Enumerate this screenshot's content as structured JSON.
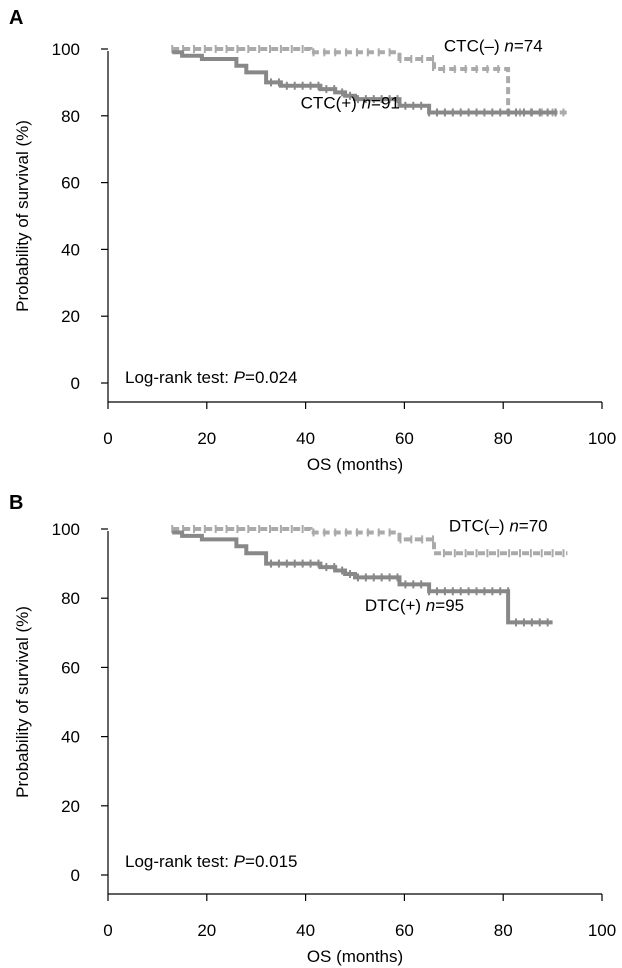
{
  "chart_data": [
    {
      "type": "line",
      "panel_label": "A",
      "xlabel": "OS (months)",
      "ylabel": "Probability of survival (%)",
      "xlim": [
        0,
        100
      ],
      "ylim": [
        0,
        100
      ],
      "x_ticks": [
        0,
        20,
        40,
        60,
        80,
        100
      ],
      "y_ticks": [
        0,
        20,
        40,
        60,
        80,
        100
      ],
      "annotation": {
        "prefix": "Log-rank test: ",
        "p_symbol": "P",
        "p_value": "=0.024"
      },
      "series": [
        {
          "name": "CTC(–)",
          "n_symbol": "n",
          "n_value": "=74",
          "color": "#aaaaaa",
          "dash": true,
          "points": [
            [
              13,
              100
            ],
            [
              41,
              100
            ],
            [
              41,
              99
            ],
            [
              59,
              99
            ],
            [
              59,
              97
            ],
            [
              66,
              97
            ],
            [
              66,
              94
            ],
            [
              81,
              94
            ],
            [
              81,
              81
            ],
            [
              93,
              81
            ]
          ],
          "censor_start": 13,
          "censor_end": 93
        },
        {
          "name": "CTC(+)",
          "n_symbol": "n",
          "n_value": "=91",
          "color": "#888888",
          "dash": false,
          "points": [
            [
              13,
              99
            ],
            [
              15,
              99
            ],
            [
              15,
              98
            ],
            [
              19,
              98
            ],
            [
              19,
              97
            ],
            [
              26,
              97
            ],
            [
              26,
              95
            ],
            [
              28,
              95
            ],
            [
              28,
              93
            ],
            [
              32,
              93
            ],
            [
              32,
              90
            ],
            [
              35,
              90
            ],
            [
              35,
              89
            ],
            [
              43,
              89
            ],
            [
              43,
              88
            ],
            [
              46,
              88
            ],
            [
              46,
              87
            ],
            [
              48,
              87
            ],
            [
              48,
              86
            ],
            [
              50,
              86
            ],
            [
              50,
              85
            ],
            [
              59,
              85
            ],
            [
              59,
              83
            ],
            [
              65,
              83
            ],
            [
              65,
              81
            ],
            [
              91,
              81
            ]
          ],
          "censor_start": 33,
          "censor_end": 91
        }
      ],
      "labels": [
        {
          "series": 0,
          "x": 68,
          "y": 101
        },
        {
          "series": 1,
          "x": 39,
          "y": 84
        }
      ]
    },
    {
      "type": "line",
      "panel_label": "B",
      "xlabel": "OS (months)",
      "ylabel": "Probability of survival (%)",
      "xlim": [
        0,
        100
      ],
      "ylim": [
        0,
        100
      ],
      "x_ticks": [
        0,
        20,
        40,
        60,
        80,
        100
      ],
      "y_ticks": [
        0,
        20,
        40,
        60,
        80,
        100
      ],
      "annotation": {
        "prefix": "Log-rank test: ",
        "p_symbol": "P",
        "p_value": "=0.015"
      },
      "series": [
        {
          "name": "DTC(–)",
          "n_symbol": "n",
          "n_value": "=70",
          "color": "#aaaaaa",
          "dash": true,
          "points": [
            [
              13,
              100
            ],
            [
              41,
              100
            ],
            [
              41,
              99
            ],
            [
              59,
              99
            ],
            [
              59,
              97
            ],
            [
              66,
              97
            ],
            [
              66,
              93
            ],
            [
              93,
              93
            ]
          ],
          "censor_start": 13,
          "censor_end": 93
        },
        {
          "name": "DTC(+)",
          "n_symbol": "n",
          "n_value": "=95",
          "color": "#888888",
          "dash": false,
          "points": [
            [
              13,
              99
            ],
            [
              15,
              99
            ],
            [
              15,
              98
            ],
            [
              19,
              98
            ],
            [
              19,
              97
            ],
            [
              26,
              97
            ],
            [
              26,
              95
            ],
            [
              28,
              95
            ],
            [
              28,
              93
            ],
            [
              32,
              93
            ],
            [
              32,
              90
            ],
            [
              43,
              90
            ],
            [
              43,
              89
            ],
            [
              46,
              89
            ],
            [
              46,
              88
            ],
            [
              48,
              88
            ],
            [
              48,
              87
            ],
            [
              50,
              87
            ],
            [
              50,
              86
            ],
            [
              59,
              86
            ],
            [
              59,
              84
            ],
            [
              65,
              84
            ],
            [
              65,
              82
            ],
            [
              81,
              82
            ],
            [
              81,
              73
            ],
            [
              90,
              73
            ]
          ],
          "censor_start": 33,
          "censor_end": 90
        }
      ],
      "labels": [
        {
          "series": 0,
          "x": 69,
          "y": 101
        },
        {
          "series": 1,
          "x": 52,
          "y": 78
        }
      ]
    }
  ]
}
